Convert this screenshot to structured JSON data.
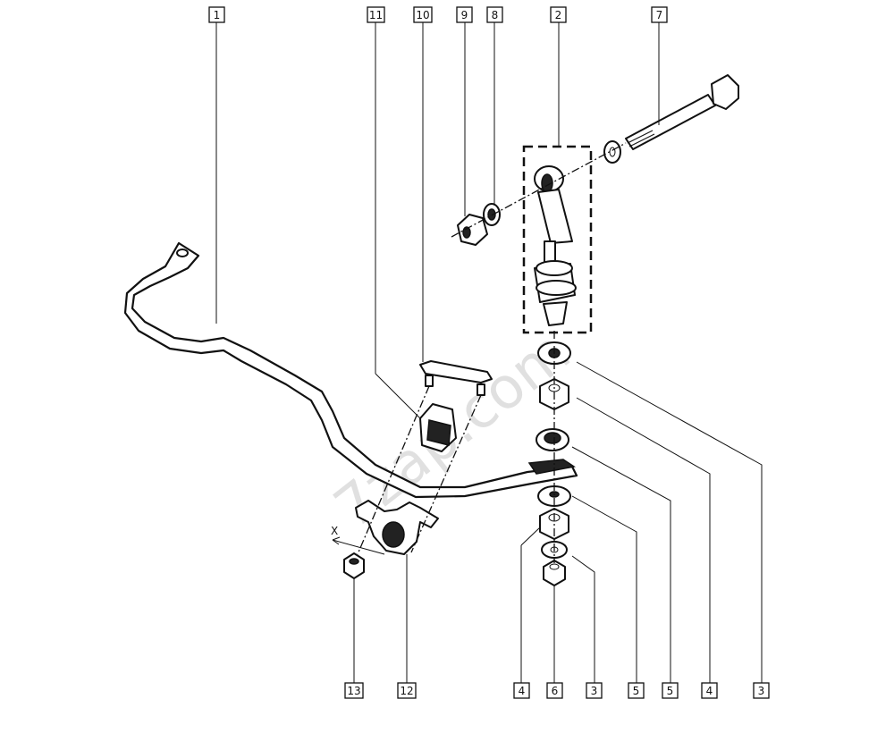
{
  "watermark": "7zap.com",
  "dimension_label": "X",
  "top_callouts": [
    "1",
    "11",
    "10",
    "9",
    "8",
    "2",
    "7"
  ],
  "bottom_callouts": [
    "13",
    "12",
    "4",
    "6",
    "3",
    "5",
    "5",
    "4",
    "3"
  ]
}
